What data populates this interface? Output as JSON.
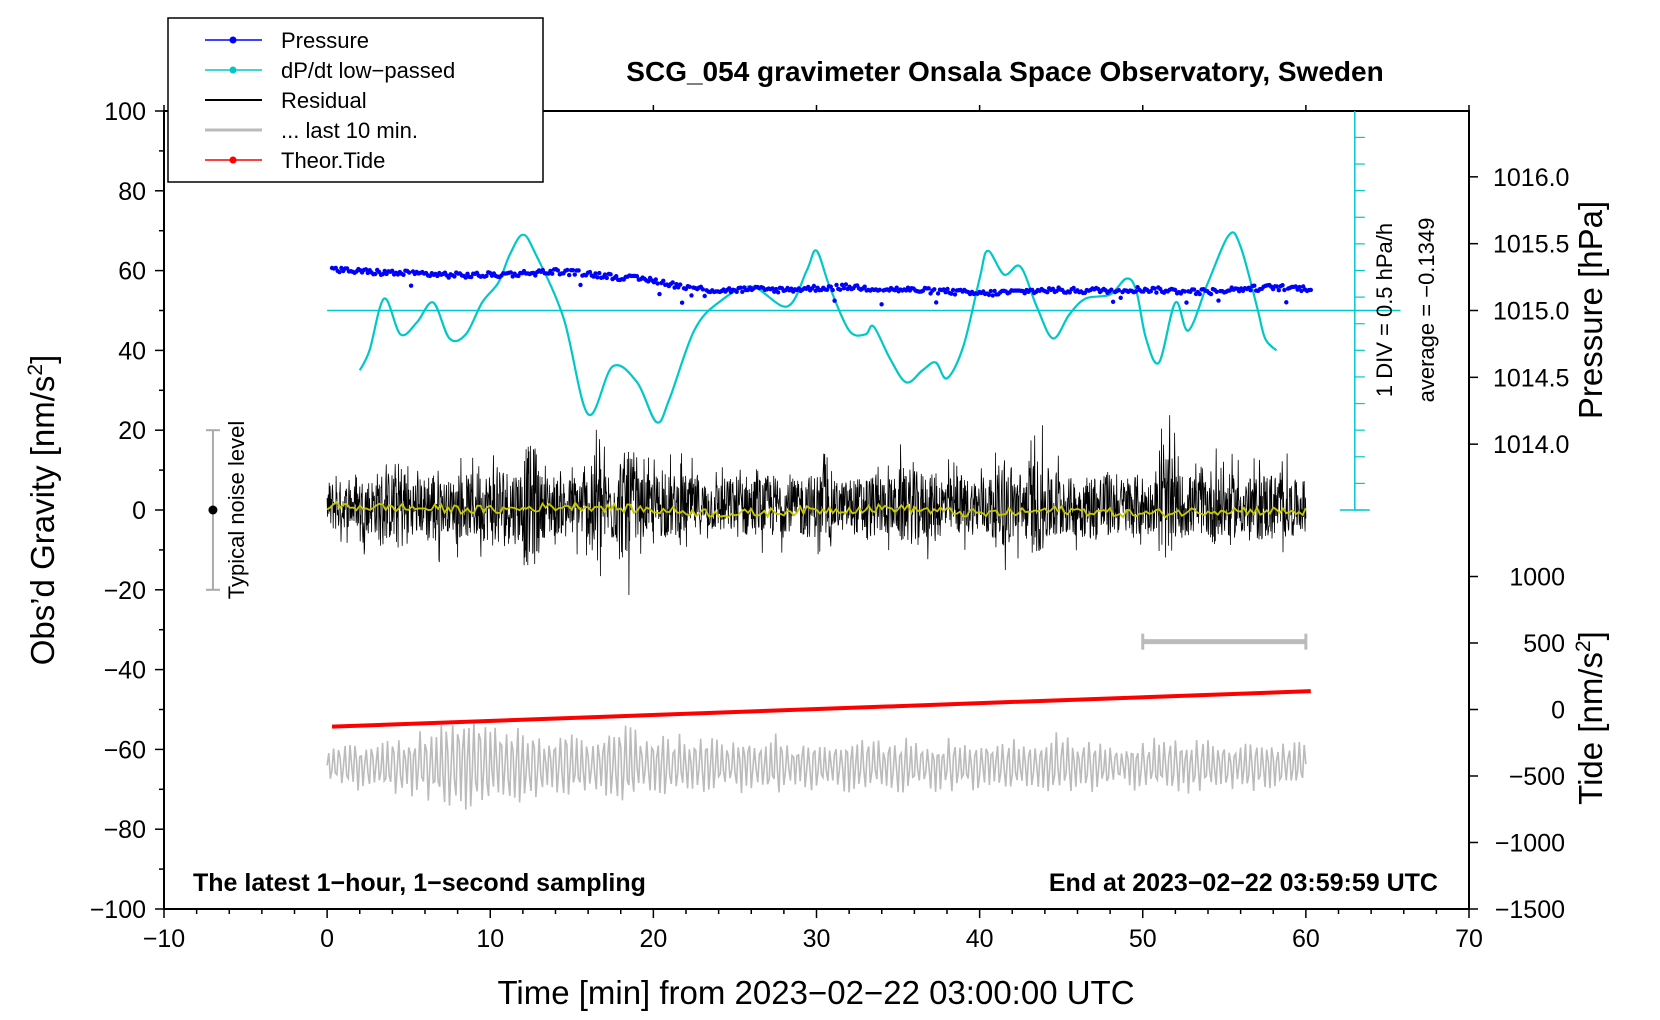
{
  "chart_data": {
    "type": "line",
    "title": "SCG_054 gravimeter Onsala Space Observatory, Sweden",
    "xlabel": "Time [min] from 2023−02−22 03:00:00 UTC",
    "ylabel_left": "Obs’d Gravity [nm/s²]",
    "ylabel_left_main": "Obs’d Gravity [nm/s",
    "ylabel_left_sup": "2",
    "ylabel_left_tail": "]",
    "ylabel_right_pressure": "Pressure [hPa]",
    "ylabel_right_tide": "Tide [nm/s²]",
    "ylabel_right_tide_main": "Tide [nm/s",
    "ylabel_right_tide_sup": "2",
    "ylabel_right_tide_tail": "]",
    "xlim": [
      -10,
      70
    ],
    "ylim": [
      -100,
      100
    ],
    "x_ticks": [
      "−10",
      "0",
      "10",
      "20",
      "30",
      "40",
      "50",
      "60",
      "70"
    ],
    "x_tick_values": [
      -10,
      0,
      10,
      20,
      30,
      40,
      50,
      60,
      70
    ],
    "y_ticks": [
      "100",
      "80",
      "60",
      "40",
      "20",
      "0",
      "−20",
      "−40",
      "−60",
      "−80",
      "−100"
    ],
    "y_tick_values": [
      100,
      80,
      60,
      40,
      20,
      0,
      -20,
      -40,
      -60,
      -80,
      -100
    ],
    "pressure_axis": {
      "ticks": [
        "1016.0",
        "1015.5",
        "1015.0",
        "1014.5",
        "1014.0"
      ],
      "tick_values": [
        1016.0,
        1015.5,
        1015.0,
        1014.5,
        1014.0
      ],
      "gravity_at_1015": 50,
      "gravity_per_hPa": 33.5
    },
    "tide_axis": {
      "ticks": [
        "1000",
        "500",
        "0",
        "−500",
        "−1000",
        "−1500"
      ],
      "tick_values": [
        1000,
        500,
        0,
        -500,
        -1000,
        -1500
      ],
      "gravity_at_0": -50,
      "gravity_per_unit": 0.03333
    },
    "legend": [
      {
        "label": "Pressure",
        "color": "#0000ff",
        "marker": true
      },
      {
        "label": "dP/dt low−passed",
        "color": "#00c8c8",
        "marker": true
      },
      {
        "label": "Residual",
        "color": "#000000",
        "marker": false
      },
      {
        "label": "... last 10 min.",
        "color": "#bbbbbb",
        "marker": false
      },
      {
        "label": "Theor.Tide",
        "color": "#ff0000",
        "marker": true
      }
    ],
    "annotations": {
      "bottom_left": "The latest 1−hour, 1−second sampling",
      "bottom_right": "End at 2023−02−22 03:59:59 UTC",
      "noise": "Typical noise level",
      "div": "1 DIV = 0.5 hPa/h",
      "average": "average = −0.1349"
    },
    "noise_bar": {
      "x": -7,
      "y_low": -20,
      "y_high": 20
    },
    "ten_min_bar": {
      "x_start": 50,
      "x_end": 60,
      "y": -33
    },
    "dpdt_scale_bar": {
      "x": 63,
      "y_low": 0,
      "y_high": 100,
      "zero_line_y": 50
    },
    "series": [
      {
        "name": "Pressure",
        "color": "#0000ff",
        "x": [
          0.3,
          2,
          4,
          6,
          8,
          10,
          12,
          14,
          16,
          18,
          20,
          22,
          24,
          26,
          28,
          30,
          32,
          34,
          36,
          38,
          40,
          42,
          44,
          46,
          48,
          50,
          52,
          54,
          56,
          58,
          60.3
        ],
        "values": [
          60.2,
          59.8,
          59.4,
          59.2,
          58.8,
          58.9,
          59.3,
          59.8,
          59.2,
          58.3,
          57.6,
          55.8,
          55.0,
          55.3,
          55.2,
          55.6,
          55.9,
          55.4,
          55.1,
          54.8,
          54.2,
          54.6,
          55.1,
          55.0,
          55.1,
          55.3,
          54.9,
          54.7,
          55.4,
          55.8,
          55.5
        ]
      },
      {
        "name": "dP/dt low-passed",
        "color": "#00c8c8",
        "x": [
          2,
          2.6,
          3.5,
          4.5,
          5.5,
          6.5,
          7.5,
          8.5,
          9.5,
          10.5,
          11.2,
          12,
          12.8,
          14.5,
          16,
          17.5,
          19,
          20.2,
          21,
          22.5,
          24,
          26,
          28.2,
          29.4,
          30,
          30.8,
          32,
          33,
          33.5,
          34.5,
          35.5,
          36.5,
          37.3,
          38,
          39,
          40,
          40.5,
          41.5,
          42.5,
          43.5,
          44.5,
          45.5,
          46.5,
          48,
          49,
          49.6,
          50.2,
          51,
          52,
          52.8,
          54,
          55.3,
          56,
          57,
          57.5,
          58.2
        ],
        "values": [
          35,
          40,
          53,
          44,
          47,
          52,
          43,
          44,
          52,
          57,
          64,
          69,
          64,
          48,
          24,
          36,
          32,
          22,
          28,
          45,
          52,
          56,
          51,
          60,
          65,
          56,
          45,
          44,
          46,
          38,
          32,
          35,
          37,
          33,
          41,
          58,
          65,
          59,
          61,
          51,
          43,
          49,
          53,
          54,
          58,
          55,
          43,
          37,
          52,
          45,
          57,
          69,
          66,
          51,
          43,
          40
        ]
      },
      {
        "name": "Residual",
        "color": "#000000",
        "x_range": [
          0,
          60
        ],
        "amplitude_by_minute": [
          8,
          7,
          9,
          11,
          14,
          9,
          12,
          8,
          10,
          11,
          13,
          12,
          19,
          10,
          9,
          10,
          16,
          12,
          17,
          9,
          10,
          10,
          9,
          8,
          9,
          10,
          9,
          10,
          8,
          10,
          11,
          8,
          9,
          10,
          9,
          12,
          11,
          10,
          9,
          9,
          10,
          13,
          11,
          15,
          12,
          9,
          10,
          11,
          9,
          10,
          8,
          17,
          10,
          9,
          12,
          10,
          9,
          11,
          10,
          8,
          8
        ]
      },
      {
        "name": "smoothed residual",
        "color": "#c8c800",
        "x": [
          0,
          5,
          10,
          15,
          20,
          25,
          30,
          35,
          40,
          45,
          50,
          55,
          60
        ],
        "values": [
          1,
          0.5,
          0,
          1,
          0,
          -1,
          0,
          0.5,
          -1,
          0,
          -1,
          0,
          -0.5
        ]
      },
      {
        "name": "... last 10 min.",
        "color": "#bbbbbb",
        "x_range": [
          0,
          60
        ],
        "center": -64,
        "amplitude_by_minute": [
          5,
          7,
          6,
          8,
          8,
          9,
          11,
          13,
          14,
          12,
          11,
          12,
          10,
          8,
          10,
          9,
          8,
          11,
          11,
          8,
          9,
          8,
          7,
          8,
          6,
          8,
          7,
          9,
          6,
          7,
          6,
          7,
          7,
          7,
          7,
          8,
          7,
          7,
          8,
          7,
          7,
          7,
          7,
          6,
          9,
          8,
          7,
          7,
          5,
          7,
          7,
          7,
          8,
          7,
          7,
          6,
          8,
          7,
          6,
          6,
          6
        ]
      },
      {
        "name": "Theor.Tide",
        "color": "#ff0000",
        "x": [
          0.3,
          60.3
        ],
        "values": [
          -54.3,
          -45.4
        ]
      }
    ]
  }
}
